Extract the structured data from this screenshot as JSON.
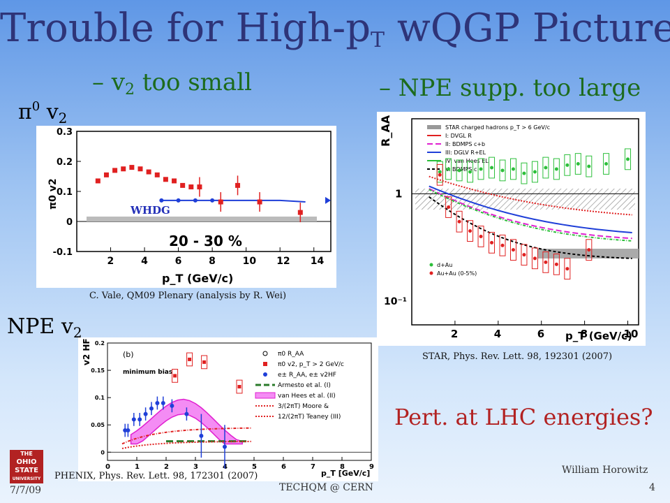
{
  "slide": {
    "title_main": "Trouble for High-p",
    "title_sub": "T",
    "title_tail": " wQGP Picture",
    "sub1_prefix": "– v",
    "sub1_sub": "2",
    "sub1_tail": " too small",
    "sub2": "– NPE supp. too large",
    "pi0_label_sym": "π",
    "pi0_label_sup": "0",
    "pi0_label_v": " v",
    "pi0_label_sub": "2",
    "npe_label_main": "NPE v",
    "npe_label_sub": "2",
    "cite_vale": "C. Vale, QM09 Plenary (analysis by R. Wei)",
    "cite_star": "STAR, Phys. Rev. Lett. 98, 192301 (2007)",
    "cite_phenix": "PHENIX, Phys. Rev. Lett. 98, 172301 (2007)",
    "question": "Pert. at LHC energies?",
    "footer_date": "7/7/09",
    "footer_center": "TECHQM @ CERN",
    "footer_author": "William Horowitz",
    "footer_page": "4",
    "logo_line1": "THE",
    "logo_line2": "OHIO",
    "logo_line3": "STATE",
    "logo_line4": "UNIVERSITY"
  },
  "chart_data": [
    {
      "type": "scatter",
      "id": "pi0_v2",
      "xlabel": "p_T (GeV/c)",
      "ylabel": "π0 v2",
      "xlim": [
        0,
        15
      ],
      "ylim": [
        -0.1,
        0.3
      ],
      "xticks": [
        2,
        4,
        6,
        8,
        10,
        12,
        14
      ],
      "yticks": [
        -0.1,
        0,
        0.1,
        0.2,
        0.3
      ],
      "annotation": "20 - 30 %",
      "curve_label": "WHDG",
      "series": [
        {
          "color": "#e02020",
          "x": [
            1.25,
            1.75,
            2.25,
            2.75,
            3.25,
            3.75,
            4.25,
            4.75,
            5.25,
            5.75,
            6.25,
            6.75,
            7.25,
            8.5,
            9.5,
            10.8,
            13.2
          ],
          "y": [
            0.135,
            0.155,
            0.17,
            0.175,
            0.18,
            0.175,
            0.165,
            0.155,
            0.14,
            0.135,
            0.12,
            0.115,
            0.115,
            0.065,
            0.12,
            0.065,
            0.03
          ]
        },
        {
          "color": "#1f3fd8",
          "x": [
            5.0,
            6.0,
            7.0,
            8.0,
            9.0,
            10.0,
            11.0,
            12.0,
            13.5
          ],
          "y": [
            0.07,
            0.07,
            0.07,
            0.07,
            0.07,
            0.07,
            0.07,
            0.07,
            0.065
          ]
        }
      ]
    },
    {
      "type": "scatter",
      "id": "star_raa",
      "xlabel": "p_T (GeV/c)",
      "ylabel": "R_AA",
      "xlim": [
        0,
        10.5
      ],
      "ylim": [
        0.06,
        5
      ],
      "yscale": "log",
      "xticks": [
        2,
        4,
        6,
        8,
        10
      ],
      "legend": [
        "STAR charged hadrons p_T > 6 GeV/c",
        "I: DVGL R",
        "II: BDMPS c+b",
        "III: DGLV R+EL",
        "IV: van Hees EL",
        "V: BDMPS c"
      ],
      "legend_bottom": [
        "d+Au",
        "Au+Au (0-5%)"
      ],
      "series": [
        {
          "name": "d+Au",
          "color": "#2cbf3a",
          "x": [
            1.3,
            1.7,
            2.2,
            2.7,
            3.2,
            3.7,
            4.2,
            4.7,
            5.2,
            5.7,
            6.2,
            6.7,
            7.2,
            7.7,
            8.2,
            9.0,
            10.0
          ],
          "y": [
            1.6,
            1.7,
            1.65,
            1.6,
            1.7,
            1.75,
            1.65,
            1.7,
            1.55,
            1.6,
            1.75,
            1.7,
            1.85,
            1.9,
            1.8,
            1.9,
            2.1
          ]
        },
        {
          "name": "Au+Au (0-5%)",
          "color": "#e02020",
          "x": [
            1.3,
            1.7,
            2.2,
            2.7,
            3.2,
            3.7,
            4.2,
            4.7,
            5.2,
            5.7,
            6.2,
            6.7,
            7.2,
            8.2
          ],
          "y": [
            1.5,
            0.75,
            0.55,
            0.45,
            0.4,
            0.35,
            0.33,
            0.3,
            0.27,
            0.25,
            0.23,
            0.22,
            0.2,
            0.3
          ]
        }
      ]
    },
    {
      "type": "scatter",
      "id": "phenix_v2hf",
      "panel_label": "(b)",
      "sublabel": "minimum bias",
      "xlabel": "p_T [GeV/c]",
      "ylabel": "v2 HF",
      "xlim": [
        0,
        9
      ],
      "ylim": [
        -0.015,
        0.2
      ],
      "xticks": [
        0,
        1,
        2,
        3,
        4,
        5,
        6,
        7,
        8,
        9
      ],
      "yticks": [
        0,
        0.05,
        0.1,
        0.15,
        0.2
      ],
      "legend": [
        "π0 R_AA",
        "π0 v2, p_T > 2 GeV/c",
        "e± R_AA, e± v2HF",
        "Armesto et al. (I)",
        "van Hees et al. (II)",
        "3/(2πT)  Moore &",
        "12/(2πT)  Teaney (III)"
      ],
      "series": [
        {
          "name": "π0 v2, p_T > 2 GeV/c",
          "color": "#e02020",
          "x": [
            2.3,
            2.8,
            3.3,
            4.5
          ],
          "y": [
            0.14,
            0.17,
            0.165,
            0.12
          ]
        },
        {
          "name": "e± R_AA, e± v2HF",
          "color": "#1f3fd8",
          "x": [
            0.6,
            0.7,
            0.9,
            1.1,
            1.3,
            1.5,
            1.7,
            1.9,
            2.2,
            2.7,
            3.2,
            4.0
          ],
          "y": [
            0.04,
            0.04,
            0.06,
            0.06,
            0.07,
            0.08,
            0.09,
            0.09,
            0.085,
            0.07,
            0.03,
            0.01
          ]
        }
      ]
    }
  ]
}
